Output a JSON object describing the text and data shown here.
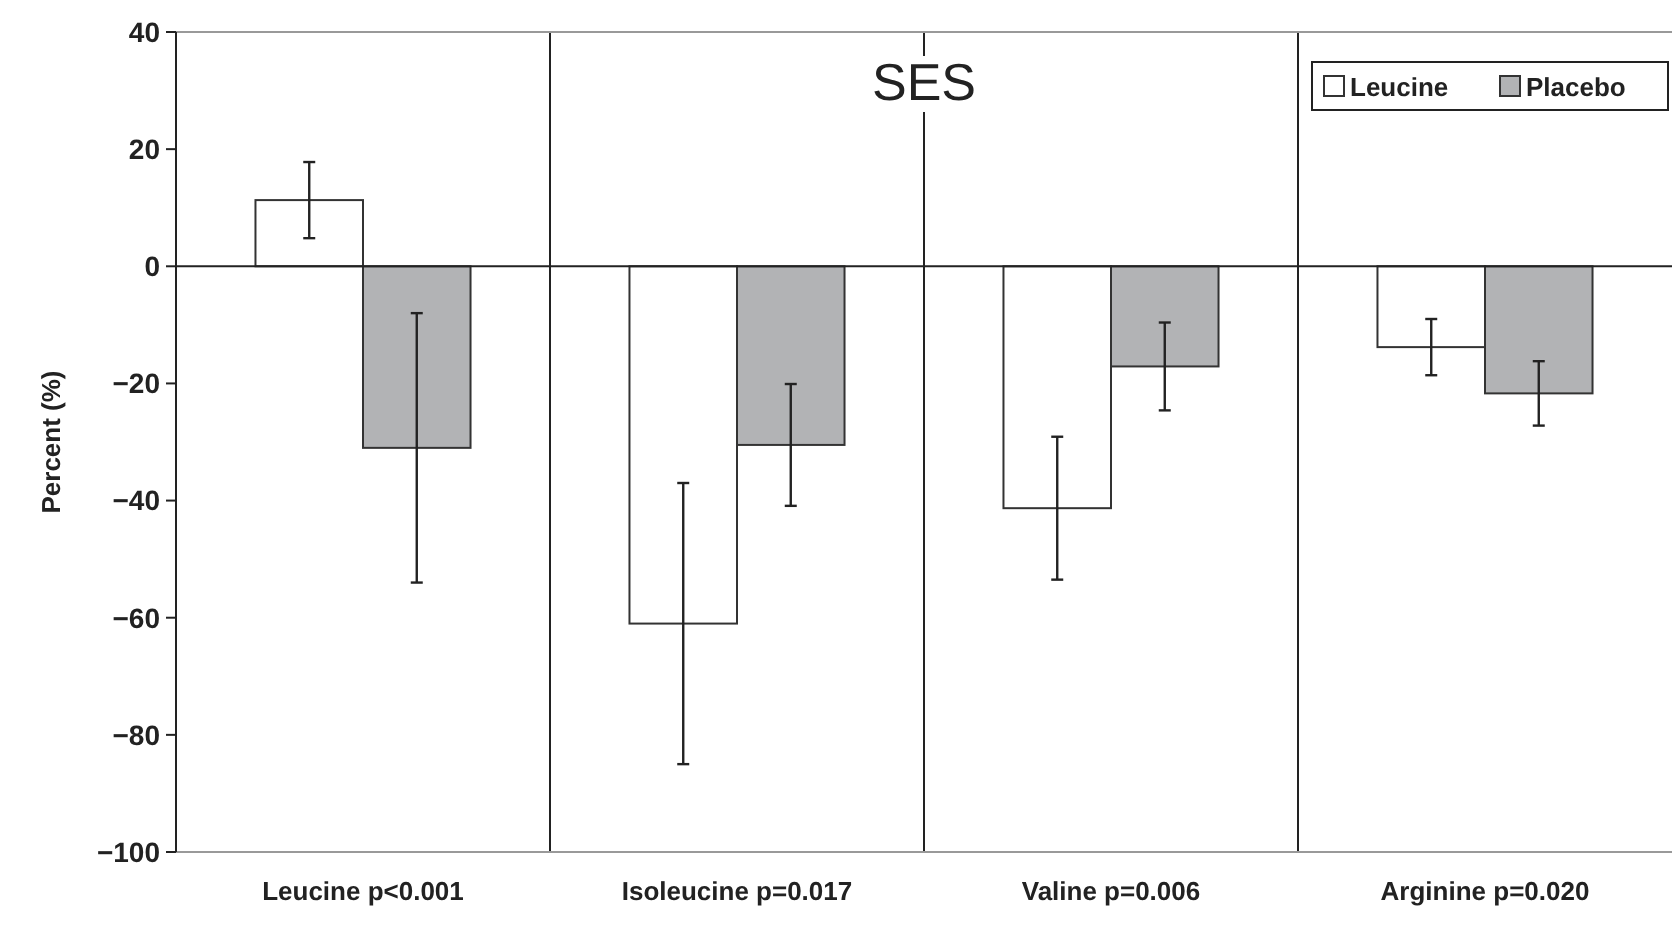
{
  "chart_data": {
    "type": "bar",
    "title": "SES",
    "ylabel": "Percent (%)",
    "categories": [
      "Leucine p<0.001",
      "Isoleucine p=0.017",
      "Valine p=0.006",
      "Arginine p=0.020"
    ],
    "series": [
      {
        "name": "Leucine",
        "color": "#ffffff",
        "values": [
          11.3,
          -61,
          -41.3,
          -13.8
        ],
        "errors": [
          6.5,
          24,
          12.2,
          4.8
        ]
      },
      {
        "name": "Placebo",
        "color": "#b2b3b5",
        "values": [
          -31,
          -30.5,
          -17.1,
          -21.7
        ],
        "errors": [
          23,
          10.4,
          7.5,
          5.5
        ]
      }
    ],
    "ylim": [
      -100,
      40
    ],
    "yticks": [
      {
        "value": -100,
        "label": "−100"
      },
      {
        "value": -80,
        "label": "−80"
      },
      {
        "value": -60,
        "label": "−60"
      },
      {
        "value": -40,
        "label": "−40"
      },
      {
        "value": -20,
        "label": "−20"
      },
      0,
      20,
      40
    ],
    "ref_lines": [
      {
        "axis": "y",
        "value": 0,
        "color": "#222222"
      }
    ],
    "grid": false,
    "legend": "top right"
  }
}
